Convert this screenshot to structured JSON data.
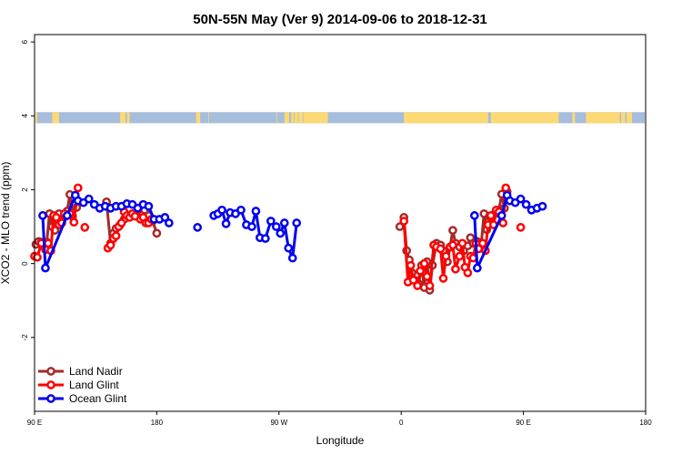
{
  "chart_data": {
    "type": "line",
    "title": "50N-55N May (Ver 9)   2014-09-06 to 2018-12-31",
    "xlabel": "Longitude",
    "ylabel": "XCO2 - MLO trend (ppm)",
    "xlim": [
      90,
      540
    ],
    "ylim": [
      -4,
      6.2
    ],
    "x_ticks": [
      {
        "value": 90,
        "label": "90 E"
      },
      {
        "value": 180,
        "label": "180"
      },
      {
        "value": 270,
        "label": "90 W"
      },
      {
        "value": 360,
        "label": "0"
      },
      {
        "value": 450,
        "label": "90 E"
      },
      {
        "value": 540,
        "label": "180"
      }
    ],
    "y_ticks": [
      {
        "value": -2,
        "label": "-2"
      },
      {
        "value": 0,
        "label": "0"
      },
      {
        "value": 2,
        "label": "2"
      },
      {
        "value": 4,
        "label": "4"
      },
      {
        "value": 6,
        "label": "6"
      }
    ],
    "land_ocean_band": {
      "y_range": [
        3.8,
        4.1
      ],
      "ocean_color": "#a6bddb",
      "land_color": "#fdd976",
      "land_segments": [
        [
          90,
          92
        ],
        [
          103,
          108
        ],
        [
          153,
          157
        ],
        [
          158,
          160
        ],
        [
          209,
          212
        ],
        [
          218,
          218.5
        ],
        [
          268,
          268.5
        ],
        [
          274,
          277.5
        ],
        [
          279,
          281
        ],
        [
          281.5,
          284
        ],
        [
          284.5,
          287.5
        ],
        [
          288,
          306
        ],
        [
          362,
          424
        ],
        [
          426,
          476
        ],
        [
          486,
          488
        ],
        [
          496,
          521
        ],
        [
          522,
          525
        ],
        [
          526,
          530
        ]
      ]
    },
    "legend": {
      "position": "bottom-left",
      "entries": [
        {
          "name": "Land Nadir",
          "color": "#a52a2a"
        },
        {
          "name": "Land Glint",
          "color": "#ff0000"
        },
        {
          "name": "Ocean Glint",
          "color": "#0000ee"
        }
      ]
    },
    "series": [
      {
        "name": "Land Nadir",
        "color": "#a52a2a",
        "segments": [
          [
            [
              91,
              0.52
            ],
            [
              93,
              0.6
            ],
            [
              95,
              0.58
            ],
            [
              97,
              0.55
            ],
            [
              99,
              0.58
            ],
            [
              101,
              1.35
            ],
            [
              103,
              1.0
            ],
            [
              105,
              0.9
            ],
            [
              106,
              1.22
            ],
            [
              108,
              1.35
            ],
            [
              110,
              1.1
            ],
            [
              112,
              1.28
            ],
            [
              114,
              1.42
            ],
            [
              116,
              1.87
            ],
            [
              118,
              1.28
            ],
            [
              121,
              1.52
            ]
          ],
          [
            [
              143,
              1.67
            ],
            [
              146,
              0.55
            ],
            [
              148,
              0.82
            ],
            [
              150,
              0.95
            ],
            [
              153,
              1.05
            ],
            [
              156,
              1.2
            ],
            [
              159,
              1.28
            ],
            [
              162,
              1.3
            ],
            [
              165,
              1.35
            ],
            [
              168,
              1.38
            ],
            [
              171,
              1.45
            ],
            [
              174,
              1.3
            ],
            [
              177,
              1.15
            ],
            [
              180,
              0.82
            ]
          ],
          [
            [
              359,
              1.0
            ],
            [
              362,
              1.25
            ],
            [
              364,
              0.35
            ],
            [
              366,
              0.1
            ],
            [
              368,
              -0.25
            ],
            [
              370,
              -0.45
            ],
            [
              373,
              -0.55
            ],
            [
              375,
              -0.05
            ],
            [
              377,
              -0.65
            ],
            [
              379,
              0.05
            ],
            [
              381,
              -0.72
            ],
            [
              383,
              -0.05
            ],
            [
              386,
              0.55
            ],
            [
              389,
              0.5
            ],
            [
              391,
              0.35
            ],
            [
              394,
              0.05
            ],
            [
              396,
              0.45
            ],
            [
              398,
              0.9
            ],
            [
              400,
              0.55
            ],
            [
              403,
              0.45
            ],
            [
              406,
              0.35
            ],
            [
              409,
              0.48
            ],
            [
              411,
              0.7
            ],
            [
              413,
              0.55
            ],
            [
              416,
              0.6
            ],
            [
              419,
              0.55
            ],
            [
              421,
              1.35
            ],
            [
              423,
              0.92
            ],
            [
              425,
              1.28
            ],
            [
              427,
              1.25
            ],
            [
              429,
              1.35
            ],
            [
              432,
              1.45
            ],
            [
              434,
              1.88
            ],
            [
              436,
              1.5
            ],
            [
              438,
              1.95
            ]
          ]
        ]
      },
      {
        "name": "Land Glint",
        "color": "#ff0000",
        "segments": [
          [
            [
              90,
              0.2
            ],
            [
              92,
              0.17
            ],
            [
              95,
              0.55
            ],
            [
              98,
              0.38
            ],
            [
              100,
              0.55
            ],
            [
              102,
              0.35
            ],
            [
              104,
              1.3
            ],
            [
              106,
              1.25
            ],
            [
              108,
              1.05
            ],
            [
              110,
              1.1
            ],
            [
              112,
              1.35
            ],
            [
              114,
              1.3
            ],
            [
              116,
              1.35
            ],
            [
              119,
              1.12
            ],
            [
              122,
              2.05
            ]
          ],
          [
            [
              127,
              0.98
            ]
          ],
          [
            [
              144,
              0.42
            ],
            [
              146,
              0.5
            ],
            [
              148,
              0.68
            ],
            [
              150,
              0.75
            ],
            [
              152,
              1.0
            ],
            [
              154,
              1.1
            ],
            [
              156,
              1.4
            ],
            [
              158,
              1.3
            ],
            [
              160,
              1.25
            ],
            [
              162,
              1.35
            ],
            [
              164,
              1.28
            ],
            [
              166,
              1.45
            ],
            [
              168,
              1.2
            ],
            [
              170,
              1.25
            ],
            [
              172,
              1.1
            ],
            [
              174,
              1.1
            ],
            [
              176,
              1.2
            ]
          ],
          [
            [
              362,
              1.15
            ],
            [
              365,
              -0.5
            ],
            [
              367,
              -0.05
            ],
            [
              369,
              -0.45
            ],
            [
              372,
              -0.6
            ],
            [
              374,
              -0.2
            ],
            [
              377,
              0.0
            ],
            [
              379,
              -0.35
            ],
            [
              381,
              -0.6
            ],
            [
              384,
              0.5
            ],
            [
              386,
              0.45
            ],
            [
              389,
              0.4
            ],
            [
              391,
              -0.4
            ],
            [
              393,
              0.2
            ],
            [
              396,
              0.45
            ],
            [
              398,
              0.5
            ],
            [
              400,
              -0.15
            ],
            [
              403,
              0.2
            ],
            [
              405,
              0.55
            ],
            [
              407,
              -0.1
            ],
            [
              409,
              -0.25
            ],
            [
              411,
              0.2
            ],
            [
              413,
              0.15
            ],
            [
              415,
              0.55
            ],
            [
              417,
              0.4
            ],
            [
              420,
              0.55
            ],
            [
              422,
              0.35
            ],
            [
              424,
              1.05
            ],
            [
              426,
              1.3
            ],
            [
              428,
              1.05
            ],
            [
              430,
              1.45
            ],
            [
              432,
              1.4
            ],
            [
              435,
              1.1
            ],
            [
              437,
              2.05
            ]
          ],
          [
            [
              448,
              0.98
            ]
          ]
        ]
      },
      {
        "name": "Ocean Glint",
        "color": "#0000ee",
        "segments": [
          [
            [
              96,
              1.3
            ],
            [
              98,
              -0.12
            ],
            [
              114,
              1.3
            ],
            [
              120,
              1.85
            ],
            [
              122,
              1.7
            ],
            [
              126,
              1.65
            ],
            [
              130,
              1.75
            ],
            [
              134,
              1.6
            ],
            [
              138,
              1.5
            ],
            [
              142,
              1.55
            ],
            [
              146,
              1.5
            ],
            [
              150,
              1.55
            ],
            [
              154,
              1.55
            ],
            [
              158,
              1.62
            ],
            [
              162,
              1.6
            ],
            [
              166,
              1.5
            ],
            [
              170,
              1.6
            ],
            [
              174,
              1.55
            ],
            [
              178,
              1.2
            ],
            [
              182,
              1.2
            ],
            [
              186,
              1.25
            ],
            [
              189,
              1.1
            ]
          ],
          [
            [
              210,
              0.98
            ]
          ],
          [
            [
              222,
              1.3
            ],
            [
              225,
              1.35
            ],
            [
              228,
              1.45
            ],
            [
              231,
              1.08
            ],
            [
              234,
              1.38
            ],
            [
              238,
              1.35
            ],
            [
              242,
              1.45
            ],
            [
              246,
              1.05
            ],
            [
              250,
              1.0
            ],
            [
              253,
              1.42
            ],
            [
              256,
              0.7
            ],
            [
              260,
              0.68
            ],
            [
              264,
              1.15
            ],
            [
              268,
              1.0
            ],
            [
              271,
              0.82
            ],
            [
              274,
              1.1
            ],
            [
              277,
              0.42
            ],
            [
              280,
              0.15
            ],
            [
              283,
              1.1
            ]
          ],
          [
            [
              414,
              1.3
            ],
            [
              416,
              -0.12
            ],
            [
              434,
              1.3
            ],
            [
              438,
              1.85
            ],
            [
              440,
              1.7
            ],
            [
              444,
              1.65
            ],
            [
              448,
              1.75
            ],
            [
              452,
              1.6
            ],
            [
              456,
              1.45
            ],
            [
              460,
              1.5
            ],
            [
              464,
              1.55
            ]
          ]
        ]
      }
    ]
  }
}
